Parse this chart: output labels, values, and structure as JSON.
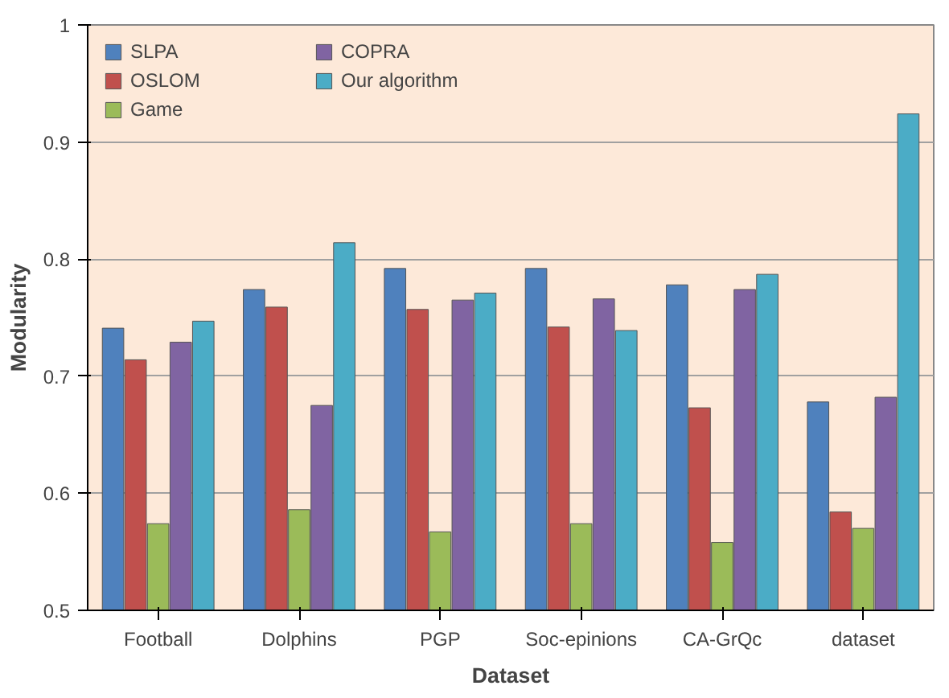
{
  "chart_data": {
    "type": "bar",
    "xlabel": "Dataset",
    "ylabel": "Modularity",
    "categories": [
      "Football",
      "Dolphins",
      "PGP",
      "Soc-epinions",
      "CA-GrQc",
      "dataset"
    ],
    "series": [
      {
        "name": "SLPA",
        "color": "#4f81bd",
        "values": [
          0.741,
          0.774,
          0.792,
          0.792,
          0.778,
          0.678
        ]
      },
      {
        "name": "OSLOM",
        "color": "#c0504d",
        "values": [
          0.714,
          0.759,
          0.757,
          0.742,
          0.673,
          0.584
        ]
      },
      {
        "name": "Game",
        "color": "#9bbb59",
        "values": [
          0.574,
          0.586,
          0.567,
          0.574,
          0.558,
          0.57
        ]
      },
      {
        "name": "COPRA",
        "color": "#8064a2",
        "values": [
          0.729,
          0.675,
          0.765,
          0.766,
          0.774,
          0.682
        ]
      },
      {
        "name": "Our algorithm",
        "color": "#4bacc6",
        "values": [
          0.747,
          0.814,
          0.771,
          0.739,
          0.787,
          0.924
        ]
      }
    ],
    "ylim": [
      0.5,
      1
    ],
    "yticks": [
      0.5,
      0.6,
      0.7,
      0.8,
      0.9,
      1
    ],
    "grid": "y",
    "legend": "top left"
  }
}
